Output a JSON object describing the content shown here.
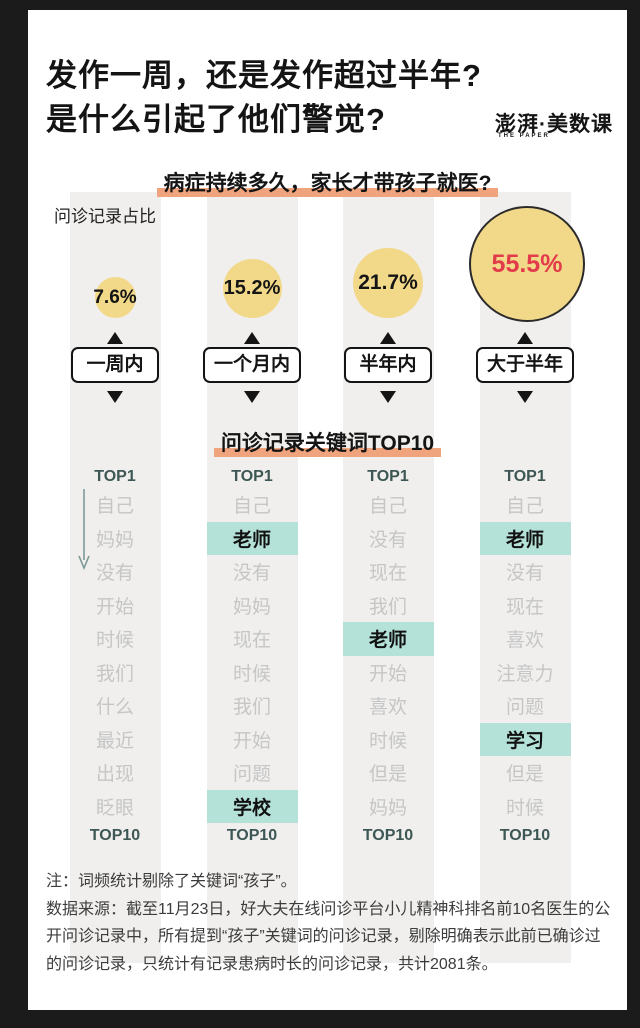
{
  "title": {
    "line1": "发作一周，还是发作超过半年?",
    "line2": "是什么引起了他们警觉?"
  },
  "logo": {
    "main": "澎湃·美数课",
    "sub": "THE PAPER"
  },
  "colors": {
    "frame_bg": "#1b1b1b",
    "card_bg": "#ffffff",
    "bar_bg": "#f0efed",
    "circle_fill": "#f2d98a",
    "circle_outline": "#2b2b2b",
    "accent_red": "#e23c4a",
    "accent_orange": "#f0a47d",
    "accent_teal": "#b5e2d8",
    "keyword_gray": "#c6c6c6",
    "rank_label": "#3d5754",
    "text_black": "#141414",
    "footer_text": "#3c3c3c",
    "rank_arrow": "#7e9a98"
  },
  "chart_data": {
    "type": "bubble",
    "title": "病症持续多久，家长才带孩子就医?",
    "value_label": "问诊记录占比",
    "unit": "%",
    "categories": [
      "一周内",
      "一个月内",
      "半年内",
      "大于半年"
    ],
    "values": [
      7.6,
      15.2,
      21.7,
      55.5
    ],
    "highlight_value_index": 3,
    "keyword_lists": {
      "heading": "问诊记录关键词TOP10",
      "rank_start_label": "TOP1",
      "rank_end_label": "TOP10",
      "lists": [
        {
          "category": "一周内",
          "keywords": [
            {
              "text": "自己",
              "highlight": false
            },
            {
              "text": "妈妈",
              "highlight": false
            },
            {
              "text": "没有",
              "highlight": false
            },
            {
              "text": "开始",
              "highlight": false
            },
            {
              "text": "时候",
              "highlight": false
            },
            {
              "text": "我们",
              "highlight": false
            },
            {
              "text": "什么",
              "highlight": false
            },
            {
              "text": "最近",
              "highlight": false
            },
            {
              "text": "出现",
              "highlight": false
            },
            {
              "text": "眨眼",
              "highlight": false
            }
          ]
        },
        {
          "category": "一个月内",
          "keywords": [
            {
              "text": "自己",
              "highlight": false
            },
            {
              "text": "老师",
              "highlight": true
            },
            {
              "text": "没有",
              "highlight": false
            },
            {
              "text": "妈妈",
              "highlight": false
            },
            {
              "text": "现在",
              "highlight": false
            },
            {
              "text": "时候",
              "highlight": false
            },
            {
              "text": "我们",
              "highlight": false
            },
            {
              "text": "开始",
              "highlight": false
            },
            {
              "text": "问题",
              "highlight": false
            },
            {
              "text": "学校",
              "highlight": true
            }
          ]
        },
        {
          "category": "半年内",
          "keywords": [
            {
              "text": "自己",
              "highlight": false
            },
            {
              "text": "没有",
              "highlight": false
            },
            {
              "text": "现在",
              "highlight": false
            },
            {
              "text": "我们",
              "highlight": false
            },
            {
              "text": "老师",
              "highlight": true
            },
            {
              "text": "开始",
              "highlight": false
            },
            {
              "text": "喜欢",
              "highlight": false
            },
            {
              "text": "时候",
              "highlight": false
            },
            {
              "text": "但是",
              "highlight": false
            },
            {
              "text": "妈妈",
              "highlight": false
            }
          ]
        },
        {
          "category": "大于半年",
          "keywords": [
            {
              "text": "自己",
              "highlight": false
            },
            {
              "text": "老师",
              "highlight": true
            },
            {
              "text": "没有",
              "highlight": false
            },
            {
              "text": "现在",
              "highlight": false
            },
            {
              "text": "喜欢",
              "highlight": false
            },
            {
              "text": "注意力",
              "highlight": false
            },
            {
              "text": "问题",
              "highlight": false
            },
            {
              "text": "学习",
              "highlight": true
            },
            {
              "text": "但是",
              "highlight": false
            },
            {
              "text": "时候",
              "highlight": false
            }
          ]
        }
      ]
    }
  },
  "footer": {
    "note": "注：词频统计剔除了关键词“孩子”。",
    "source": "数据来源：截至11月23日，好大夫在线问诊平台小儿精神科排名前10名医生的公开问诊记录中，所有提到“孩子”关键词的问诊记录，剔除明确表示此前已确诊过的问诊记录，只统计有记录患病时长的问诊记录，共计2081条。"
  }
}
